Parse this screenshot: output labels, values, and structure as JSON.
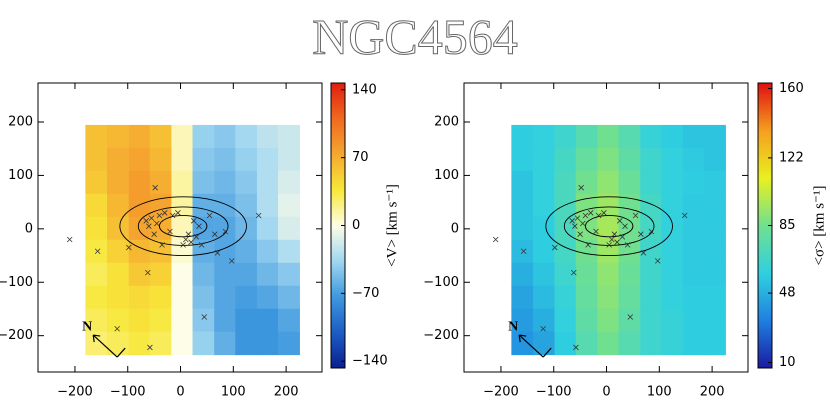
{
  "title": "NGC4564",
  "chart_data": [
    {
      "type": "heatmap",
      "x": [
        -160,
        -119,
        -78,
        -38,
        3,
        43,
        84,
        124,
        165,
        205
      ],
      "y": [
        173,
        130,
        87,
        44,
        1,
        -42,
        -85,
        -128,
        -171,
        -214
      ],
      "z": [
        [
          60,
          65,
          70,
          60,
          10,
          -40,
          -45,
          -35,
          -25,
          -20
        ],
        [
          60,
          70,
          75,
          65,
          10,
          -45,
          -50,
          -40,
          -30,
          -20
        ],
        [
          55,
          70,
          80,
          70,
          15,
          -50,
          -55,
          -45,
          -30,
          -15
        ],
        [
          45,
          65,
          80,
          75,
          15,
          -60,
          -60,
          -50,
          -30,
          -10
        ],
        [
          40,
          60,
          75,
          70,
          10,
          -65,
          -65,
          -55,
          -35,
          -15
        ],
        [
          35,
          50,
          65,
          60,
          5,
          -60,
          -65,
          -60,
          -45,
          -30
        ],
        [
          30,
          40,
          55,
          50,
          0,
          -55,
          -65,
          -65,
          -55,
          -45
        ],
        [
          35,
          40,
          45,
          40,
          0,
          -50,
          -65,
          -70,
          -65,
          -55
        ],
        [
          30,
          35,
          40,
          35,
          0,
          -45,
          -65,
          -75,
          -75,
          -65
        ],
        [
          25,
          30,
          35,
          30,
          0,
          -40,
          -60,
          -75,
          -75,
          -70
        ]
      ],
      "points": {
        "x": [
          -210,
          -157,
          -120,
          -48,
          -62,
          -58,
          148,
          97,
          45,
          -98,
          -65,
          -55,
          -60,
          -50,
          -40,
          -30,
          -20,
          -15,
          -5,
          10,
          15,
          20,
          25,
          30,
          35,
          40,
          55,
          65,
          70,
          5,
          -35,
          -45,
          85
        ],
        "y": [
          -20,
          -42,
          -187,
          77,
          -82,
          -222,
          25,
          -60,
          -165,
          -35,
          15,
          20,
          5,
          -10,
          25,
          30,
          -5,
          25,
          30,
          -20,
          -10,
          -25,
          15,
          -15,
          5,
          -30,
          25,
          -10,
          -45,
          -30,
          -30,
          10,
          -5
        ]
      },
      "contours": [
        {
          "cx": 5,
          "cy": 5,
          "rx": 120,
          "ry": 55
        },
        {
          "cx": 5,
          "cy": 5,
          "rx": 85,
          "ry": 36
        },
        {
          "cx": 5,
          "cy": 5,
          "rx": 45,
          "ry": 20
        }
      ],
      "compass_label": "N",
      "xlim": [
        -270,
        268
      ],
      "ylim": [
        -268,
        273
      ],
      "xticks": [
        {
          "value": -200,
          "label": "−200"
        },
        {
          "value": -100,
          "label": "−100"
        },
        0,
        100,
        200
      ],
      "yticks": [
        200,
        100,
        0,
        {
          "value": -100,
          "label": "−100"
        },
        {
          "value": -200,
          "label": "−200"
        }
      ],
      "colorbar": {
        "label": "<V> [km s⁻¹]",
        "lim": [
          -147,
          147
        ],
        "ticks": [
          140,
          70,
          0,
          {
            "value": -70,
            "label": "−70"
          },
          {
            "value": -140,
            "label": "−140"
          }
        ],
        "colors": [
          "#0a1f8f",
          "#1d5cc4",
          "#3d98de",
          "#9fd6f0",
          "#fdfde8",
          "#f8e83a",
          "#f5a830",
          "#f06a20",
          "#e02010"
        ]
      }
    },
    {
      "type": "heatmap",
      "x": [
        -160,
        -119,
        -78,
        -38,
        3,
        43,
        84,
        124,
        165,
        205
      ],
      "y": [
        173,
        130,
        87,
        44,
        1,
        -42,
        -85,
        -128,
        -171,
        -214
      ],
      "z": [
        [
          58,
          60,
          65,
          75,
          85,
          75,
          62,
          58,
          55,
          55
        ],
        [
          58,
          60,
          68,
          80,
          88,
          78,
          65,
          60,
          57,
          55
        ],
        [
          55,
          60,
          70,
          85,
          92,
          82,
          65,
          60,
          58,
          57
        ],
        [
          55,
          60,
          70,
          88,
          95,
          85,
          68,
          60,
          57,
          57
        ],
        [
          55,
          58,
          70,
          88,
          97,
          85,
          68,
          60,
          57,
          57
        ],
        [
          52,
          58,
          68,
          85,
          95,
          85,
          66,
          60,
          57,
          57
        ],
        [
          48,
          55,
          65,
          82,
          92,
          82,
          66,
          60,
          57,
          57
        ],
        [
          45,
          52,
          62,
          80,
          90,
          80,
          65,
          60,
          58,
          58
        ],
        [
          42,
          48,
          60,
          78,
          88,
          78,
          65,
          62,
          58,
          58
        ],
        [
          40,
          45,
          58,
          75,
          85,
          75,
          65,
          62,
          58,
          58
        ]
      ],
      "points": {
        "x": [
          -210,
          -157,
          -120,
          -48,
          -62,
          -58,
          148,
          97,
          45,
          -98,
          -65,
          -55,
          -60,
          -50,
          -40,
          -30,
          -20,
          -15,
          -5,
          10,
          15,
          20,
          25,
          30,
          35,
          40,
          55,
          65,
          70,
          5,
          -35,
          -45,
          85
        ],
        "y": [
          -20,
          -42,
          -187,
          77,
          -82,
          -222,
          25,
          -60,
          -165,
          -35,
          15,
          20,
          5,
          -10,
          25,
          30,
          -5,
          25,
          30,
          -20,
          -10,
          -25,
          15,
          -15,
          5,
          -30,
          25,
          -10,
          -45,
          -30,
          -30,
          10,
          -5
        ]
      },
      "contours": [
        {
          "cx": 5,
          "cy": 5,
          "rx": 120,
          "ry": 55
        },
        {
          "cx": 5,
          "cy": 5,
          "rx": 85,
          "ry": 36
        },
        {
          "cx": 5,
          "cy": 5,
          "rx": 45,
          "ry": 20
        }
      ],
      "compass_label": "N",
      "xlim": [
        -270,
        268
      ],
      "ylim": [
        -268,
        273
      ],
      "xticks": [
        {
          "value": -200,
          "label": "−200"
        },
        {
          "value": -100,
          "label": "−100"
        },
        0,
        100,
        200
      ],
      "yticks": [
        200,
        100,
        0,
        {
          "value": -100,
          "label": "−100"
        },
        {
          "value": -200,
          "label": "−200"
        }
      ],
      "colorbar": {
        "label": "<σ> [km s⁻¹]",
        "lim": [
          7,
          163
        ],
        "ticks": [
          160,
          122,
          85,
          48,
          10
        ],
        "colors": [
          "#1a1aa0",
          "#1f7fe0",
          "#30d0e0",
          "#70e090",
          "#e8f020",
          "#f5a020",
          "#e01010"
        ]
      }
    }
  ]
}
